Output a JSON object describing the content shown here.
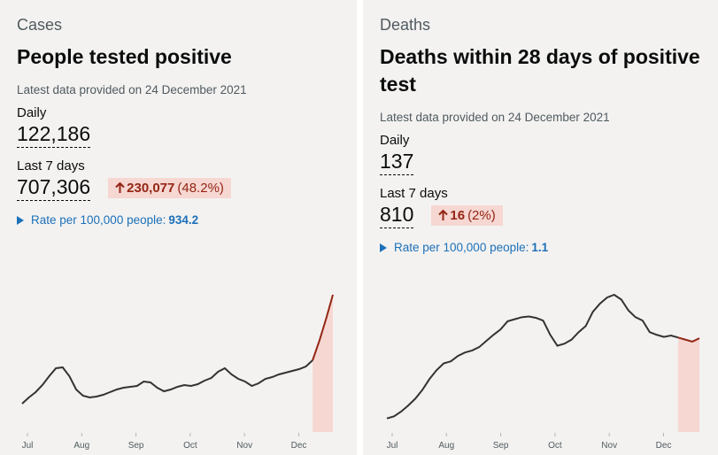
{
  "cards": [
    {
      "category": "Cases",
      "title": "People tested positive",
      "updated": "Latest data provided on 24 December 2021",
      "daily_label": "Daily",
      "daily": "122,186",
      "week_label": "Last 7 days",
      "week": "707,306",
      "change": "230,077",
      "change_percent": "(48.2%)",
      "rate_label": "Rate per 100,000 people:",
      "rate": "934.2",
      "chart": {
        "months": [
          "Jul",
          "Aug",
          "Sep",
          "Oct",
          "Nov",
          "Dec"
        ],
        "values": [
          22400,
          27300,
          31500,
          37100,
          44100,
          50400,
          51100,
          44100,
          33600,
          28700,
          27300,
          28000,
          29400,
          31500,
          33600,
          35000,
          35700,
          36400,
          39900,
          39200,
          35000,
          32200,
          33600,
          35700,
          37100,
          36400,
          37800,
          40600,
          42700,
          47600,
          50400,
          45500,
          42000,
          39900,
          36400,
          38500,
          42000,
          43400,
          45500,
          46900,
          48300,
          49700,
          51800,
          56700,
          72100,
          89600,
          108500
        ]
      }
    },
    {
      "category": "Deaths",
      "title": "Deaths within 28 days of positive test",
      "updated": "Latest data provided on 24 December 2021",
      "daily_label": "Daily",
      "daily": "137",
      "week_label": "Last 7 days",
      "week": "810",
      "change": "16",
      "change_percent": "(2%)",
      "rate_label": "Rate per 100,000 people:",
      "rate": "1.1",
      "chart": {
        "months": [
          "Jul",
          "Aug",
          "Sep",
          "Oct",
          "Nov",
          "Dec"
        ],
        "values": [
          20,
          23,
          30,
          39,
          49,
          62,
          78,
          91,
          101,
          104,
          112,
          117,
          120,
          125,
          134,
          143,
          151,
          163,
          166,
          169,
          170,
          168,
          164,
          143,
          127,
          130,
          136,
          147,
          156,
          177,
          189,
          198,
          202,
          195,
          179,
          169,
          164,
          147,
          143,
          140,
          142,
          139,
          136,
          133,
          138
        ]
      }
    }
  ]
}
